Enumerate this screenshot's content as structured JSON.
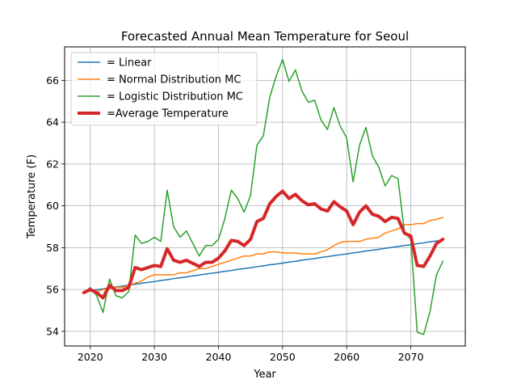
{
  "chart_data": {
    "type": "line",
    "title": "Forecasted Annual Mean Temperature for Seoul",
    "xlabel": "Year",
    "ylabel": "Temperature (F)",
    "xlim": [
      2016,
      2078.5
    ],
    "ylim": [
      53.3,
      67.6
    ],
    "xticks": [
      2020,
      2030,
      2040,
      2050,
      2060,
      2070
    ],
    "yticks": [
      54,
      56,
      58,
      60,
      62,
      64,
      66
    ],
    "grid": true,
    "legend_position": "top-left",
    "x": [
      2019,
      2020,
      2021,
      2022,
      2023,
      2024,
      2025,
      2026,
      2027,
      2028,
      2029,
      2030,
      2031,
      2032,
      2033,
      2034,
      2035,
      2036,
      2037,
      2038,
      2039,
      2040,
      2041,
      2042,
      2043,
      2044,
      2045,
      2046,
      2047,
      2048,
      2049,
      2050,
      2051,
      2052,
      2053,
      2054,
      2055,
      2056,
      2057,
      2058,
      2059,
      2060,
      2061,
      2062,
      2063,
      2064,
      2065,
      2066,
      2067,
      2068,
      2069,
      2070,
      2071,
      2072,
      2073,
      2074,
      2075
    ],
    "series": [
      {
        "name": "= Linear",
        "color": "#1f77b4",
        "width": 1.5,
        "values": [
          55.9,
          55.94,
          55.99,
          56.03,
          56.08,
          56.12,
          56.16,
          56.21,
          56.25,
          56.3,
          56.34,
          56.38,
          56.43,
          56.47,
          56.52,
          56.56,
          56.6,
          56.65,
          56.69,
          56.74,
          56.78,
          56.82,
          56.87,
          56.91,
          56.96,
          57.0,
          57.04,
          57.09,
          57.13,
          57.18,
          57.22,
          57.26,
          57.31,
          57.35,
          57.4,
          57.44,
          57.48,
          57.53,
          57.57,
          57.62,
          57.66,
          57.7,
          57.75,
          57.79,
          57.84,
          57.88,
          57.92,
          57.97,
          58.01,
          58.06,
          58.1,
          58.14,
          58.19,
          58.23,
          58.28,
          58.32,
          58.36
        ]
      },
      {
        "name": "= Normal Distribution MC",
        "color": "#ff7f0e",
        "width": 1.5,
        "values": [
          55.85,
          55.95,
          55.9,
          56.0,
          56.05,
          56.1,
          56.1,
          56.2,
          56.3,
          56.4,
          56.6,
          56.7,
          56.7,
          56.7,
          56.7,
          56.8,
          56.8,
          56.9,
          57.0,
          57.0,
          57.1,
          57.2,
          57.3,
          57.4,
          57.5,
          57.6,
          57.6,
          57.7,
          57.7,
          57.8,
          57.8,
          57.75,
          57.75,
          57.75,
          57.7,
          57.7,
          57.7,
          57.8,
          57.9,
          58.1,
          58.25,
          58.3,
          58.3,
          58.3,
          58.4,
          58.45,
          58.5,
          58.7,
          58.8,
          58.9,
          59.1,
          59.1,
          59.15,
          59.15,
          59.3,
          59.35,
          59.45
        ]
      },
      {
        "name": "= Logistic Distribution MC",
        "color": "#2ca02c",
        "width": 1.5,
        "values": [
          55.8,
          56.1,
          55.7,
          54.9,
          56.5,
          55.7,
          55.6,
          55.9,
          58.6,
          58.2,
          58.3,
          58.5,
          58.3,
          60.75,
          59.0,
          58.5,
          58.8,
          58.2,
          57.6,
          58.1,
          58.1,
          58.4,
          59.4,
          60.75,
          60.35,
          59.7,
          60.5,
          62.9,
          63.35,
          65.2,
          66.2,
          67.0,
          65.95,
          66.5,
          65.5,
          64.95,
          65.05,
          64.1,
          63.65,
          64.7,
          63.8,
          63.25,
          61.15,
          62.9,
          63.75,
          62.4,
          61.85,
          60.95,
          61.45,
          61.3,
          58.75,
          58.4,
          53.95,
          53.85,
          54.95,
          56.7,
          57.35
        ]
      },
      {
        "name": "=Average Temperature",
        "color": "#d62728",
        "width": 4,
        "values": [
          55.85,
          56.0,
          55.85,
          55.6,
          56.2,
          55.95,
          55.95,
          56.1,
          57.05,
          56.95,
          57.05,
          57.15,
          57.1,
          57.95,
          57.4,
          57.3,
          57.4,
          57.25,
          57.1,
          57.3,
          57.3,
          57.5,
          57.85,
          58.35,
          58.3,
          58.1,
          58.4,
          59.25,
          59.4,
          60.1,
          60.45,
          60.7,
          60.35,
          60.55,
          60.25,
          60.05,
          60.1,
          59.85,
          59.75,
          60.2,
          59.95,
          59.75,
          59.1,
          59.7,
          60.0,
          59.6,
          59.5,
          59.25,
          59.45,
          59.4,
          58.7,
          58.55,
          57.15,
          57.1,
          57.6,
          58.2,
          58.4
        ]
      }
    ]
  }
}
